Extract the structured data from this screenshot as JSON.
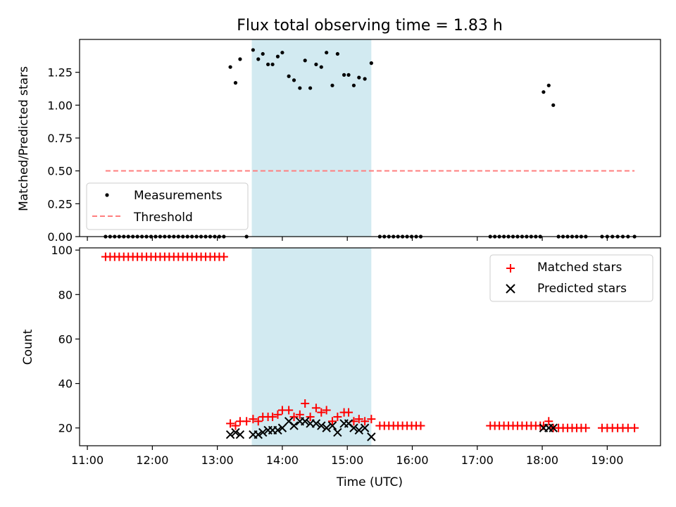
{
  "figure_title": "Flux total observing time = 1.83 h",
  "colors": {
    "measurement": "#000000",
    "threshold": "#ff7f7f",
    "matched": "#ff0000",
    "predicted": "#000000",
    "shade": "#add8e6"
  },
  "chart_data": [
    {
      "type": "scatter",
      "title": "Flux total observing time = 1.83 h",
      "xlabel": "",
      "ylabel": "Matched/Predicted stars",
      "xlim": [
        10.88,
        19.82
      ],
      "ylim": [
        0.0,
        1.5
      ],
      "yticks": [
        0.0,
        0.25,
        0.5,
        0.75,
        1.0,
        1.25
      ],
      "ytick_labels": [
        "0.00",
        "0.25",
        "0.50",
        "0.75",
        "1.00",
        "1.25"
      ],
      "shaded_x": [
        13.53,
        15.37
      ],
      "threshold": {
        "name": "Threshold",
        "value": 0.5,
        "x": [
          11.28,
          19.42
        ]
      },
      "legend": [
        "Measurements",
        "Threshold"
      ],
      "legend_position": "lower-left",
      "series": [
        {
          "name": "Measurements",
          "x": [
            11.28,
            11.35,
            11.42,
            11.49,
            11.56,
            11.63,
            11.7,
            11.77,
            11.84,
            11.91,
            11.98,
            12.05,
            12.12,
            12.19,
            12.26,
            12.33,
            12.4,
            12.47,
            12.54,
            12.61,
            12.68,
            12.75,
            12.82,
            12.89,
            12.96,
            13.03,
            13.1,
            13.2,
            13.28,
            13.35,
            13.45,
            13.55,
            13.63,
            13.7,
            13.78,
            13.85,
            13.93,
            14.0,
            14.1,
            14.18,
            14.27,
            14.35,
            14.43,
            14.52,
            14.6,
            14.68,
            14.77,
            14.85,
            14.95,
            15.02,
            15.1,
            15.18,
            15.27,
            15.37,
            15.5,
            15.57,
            15.64,
            15.71,
            15.78,
            15.85,
            15.92,
            15.99,
            16.06,
            16.13,
            17.2,
            17.27,
            17.34,
            17.41,
            17.48,
            17.55,
            17.62,
            17.69,
            17.76,
            17.83,
            17.9,
            17.97,
            18.02,
            18.1,
            18.17,
            18.25,
            18.32,
            18.39,
            18.46,
            18.53,
            18.6,
            18.67,
            18.92,
            19.0,
            19.08,
            19.16,
            19.24,
            19.32,
            19.42
          ],
          "y": [
            0,
            0,
            0,
            0,
            0,
            0,
            0,
            0,
            0,
            0,
            0,
            0,
            0,
            0,
            0,
            0,
            0,
            0,
            0,
            0,
            0,
            0,
            0,
            0,
            0,
            0,
            0,
            1.29,
            1.17,
            1.35,
            0,
            1.42,
            1.35,
            1.39,
            1.31,
            1.31,
            1.37,
            1.4,
            1.22,
            1.19,
            1.13,
            1.34,
            1.13,
            1.31,
            1.29,
            1.4,
            1.15,
            1.39,
            1.23,
            1.23,
            1.15,
            1.21,
            1.2,
            1.32,
            0,
            0,
            0,
            0,
            0,
            0,
            0,
            0,
            0,
            0,
            0,
            0,
            0,
            0,
            0,
            0,
            0,
            0,
            0,
            0,
            0,
            0,
            1.1,
            1.15,
            1.0,
            0,
            0,
            0,
            0,
            0,
            0,
            0,
            0,
            0,
            0,
            0,
            0,
            0,
            0
          ]
        }
      ]
    },
    {
      "type": "scatter",
      "title": "",
      "xlabel": "Time (UTC)",
      "ylabel": "Count",
      "xlim": [
        10.88,
        19.82
      ],
      "ylim": [
        12,
        101
      ],
      "yticks": [
        20,
        40,
        60,
        80,
        100
      ],
      "ytick_labels": [
        "20",
        "40",
        "60",
        "80",
        "100"
      ],
      "xticks": [
        11,
        12,
        13,
        14,
        15,
        16,
        17,
        18,
        19
      ],
      "xtick_labels": [
        "11:00",
        "12:00",
        "13:00",
        "14:00",
        "15:00",
        "16:00",
        "17:00",
        "18:00",
        "19:00"
      ],
      "shaded_x": [
        13.53,
        15.37
      ],
      "legend": [
        "Matched stars",
        "Predicted stars"
      ],
      "legend_position": "upper-right",
      "series": [
        {
          "name": "Matched stars",
          "x": [
            11.28,
            11.35,
            11.42,
            11.49,
            11.56,
            11.63,
            11.7,
            11.77,
            11.84,
            11.91,
            11.98,
            12.05,
            12.12,
            12.19,
            12.26,
            12.33,
            12.4,
            12.47,
            12.54,
            12.61,
            12.68,
            12.75,
            12.82,
            12.89,
            12.96,
            13.03,
            13.1,
            13.2,
            13.28,
            13.35,
            13.45,
            13.55,
            13.63,
            13.7,
            13.78,
            13.85,
            13.93,
            14.0,
            14.1,
            14.18,
            14.27,
            14.35,
            14.43,
            14.52,
            14.6,
            14.68,
            14.77,
            14.85,
            14.95,
            15.02,
            15.1,
            15.18,
            15.27,
            15.37,
            15.5,
            15.57,
            15.64,
            15.71,
            15.78,
            15.85,
            15.92,
            15.99,
            16.06,
            16.13,
            17.2,
            17.27,
            17.34,
            17.41,
            17.48,
            17.55,
            17.62,
            17.69,
            17.76,
            17.83,
            17.9,
            17.97,
            18.02,
            18.1,
            18.17,
            18.25,
            18.32,
            18.39,
            18.46,
            18.53,
            18.6,
            18.67,
            18.92,
            19.0,
            19.08,
            19.16,
            19.24,
            19.32,
            19.42
          ],
          "y": [
            97,
            97,
            97,
            97,
            97,
            97,
            97,
            97,
            97,
            97,
            97,
            97,
            97,
            97,
            97,
            97,
            97,
            97,
            97,
            97,
            97,
            97,
            97,
            97,
            97,
            97,
            97,
            22,
            21,
            23,
            23,
            24,
            23,
            25,
            25,
            25,
            26,
            28,
            28,
            25,
            26,
            31,
            25,
            29,
            27,
            28,
            23,
            25,
            27,
            27,
            23,
            24,
            23,
            24,
            21,
            21,
            21,
            21,
            21,
            21,
            21,
            21,
            21,
            21,
            21,
            21,
            21,
            21,
            21,
            21,
            21,
            21,
            21,
            21,
            21,
            21,
            21,
            23,
            20,
            20,
            20,
            20,
            20,
            20,
            20,
            20,
            20,
            20,
            20,
            20,
            20,
            20,
            20
          ]
        },
        {
          "name": "Predicted stars",
          "x": [
            13.2,
            13.28,
            13.35,
            13.55,
            13.63,
            13.7,
            13.78,
            13.85,
            13.93,
            14.0,
            14.1,
            14.18,
            14.27,
            14.35,
            14.43,
            14.52,
            14.6,
            14.68,
            14.77,
            14.85,
            14.95,
            15.02,
            15.1,
            15.18,
            15.27,
            15.37,
            18.02,
            18.1,
            18.17
          ],
          "y": [
            17,
            18,
            17,
            17,
            17,
            18,
            19,
            19,
            19,
            20,
            23,
            21,
            23,
            23,
            22,
            22,
            21,
            20,
            21,
            18,
            22,
            22,
            20,
            19,
            20,
            16,
            20,
            20,
            20
          ]
        }
      ]
    }
  ]
}
